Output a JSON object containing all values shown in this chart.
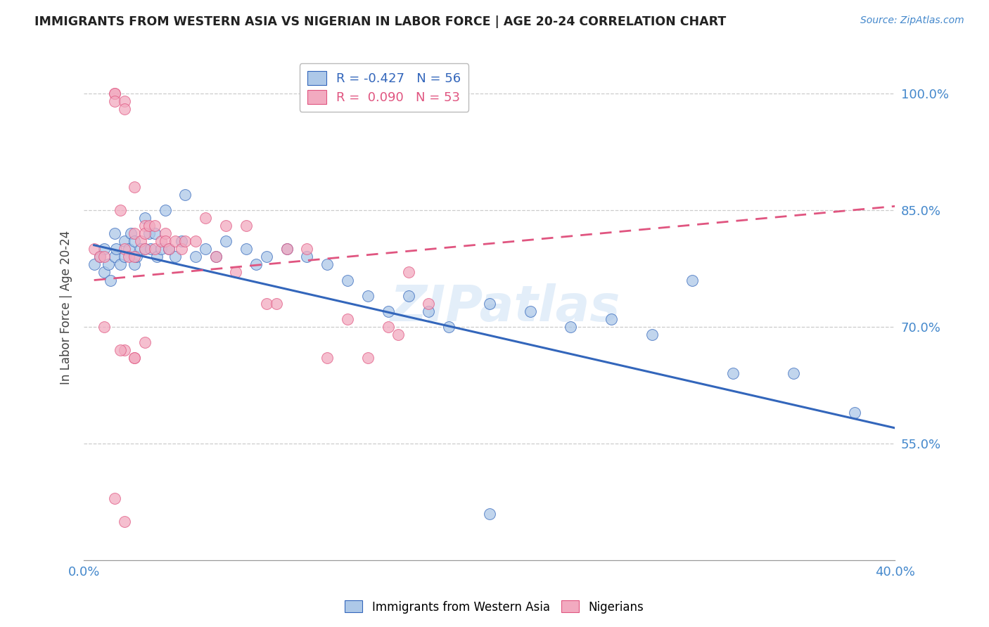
{
  "title": "IMMIGRANTS FROM WESTERN ASIA VS NIGERIAN IN LABOR FORCE | AGE 20-24 CORRELATION CHART",
  "source": "Source: ZipAtlas.com",
  "ylabel": "In Labor Force | Age 20-24",
  "xlim": [
    0.0,
    0.4
  ],
  "ylim": [
    0.4,
    1.05
  ],
  "yticks": [
    0.55,
    0.7,
    0.85,
    1.0
  ],
  "ytick_labels": [
    "55.0%",
    "70.0%",
    "85.0%",
    "100.0%"
  ],
  "xticks": [
    0.0,
    0.05,
    0.1,
    0.15,
    0.2,
    0.25,
    0.3,
    0.35,
    0.4
  ],
  "xtick_labels": [
    "0.0%",
    "",
    "",
    "",
    "",
    "",
    "",
    "",
    "40.0%"
  ],
  "legend_r_blue": "-0.427",
  "legend_n_blue": "56",
  "legend_r_pink": "0.090",
  "legend_n_pink": "53",
  "blue_color": "#adc8e8",
  "pink_color": "#f2aac0",
  "trend_blue_color": "#3366bb",
  "trend_pink_color": "#e05580",
  "watermark": "ZIPatlas",
  "blue_scatter_x": [
    0.005,
    0.008,
    0.01,
    0.01,
    0.012,
    0.013,
    0.015,
    0.015,
    0.016,
    0.018,
    0.02,
    0.02,
    0.022,
    0.023,
    0.025,
    0.025,
    0.026,
    0.028,
    0.03,
    0.03,
    0.032,
    0.033,
    0.035,
    0.036,
    0.038,
    0.04,
    0.042,
    0.045,
    0.048,
    0.05,
    0.055,
    0.06,
    0.065,
    0.07,
    0.08,
    0.085,
    0.09,
    0.1,
    0.11,
    0.12,
    0.13,
    0.14,
    0.15,
    0.16,
    0.17,
    0.18,
    0.2,
    0.22,
    0.24,
    0.26,
    0.28,
    0.3,
    0.32,
    0.35,
    0.38,
    0.2
  ],
  "blue_scatter_y": [
    0.78,
    0.79,
    0.8,
    0.77,
    0.78,
    0.76,
    0.82,
    0.79,
    0.8,
    0.78,
    0.81,
    0.79,
    0.8,
    0.82,
    0.81,
    0.78,
    0.79,
    0.8,
    0.84,
    0.8,
    0.82,
    0.8,
    0.82,
    0.79,
    0.8,
    0.85,
    0.8,
    0.79,
    0.81,
    0.87,
    0.79,
    0.8,
    0.79,
    0.81,
    0.8,
    0.78,
    0.79,
    0.8,
    0.79,
    0.78,
    0.76,
    0.74,
    0.72,
    0.74,
    0.72,
    0.7,
    0.73,
    0.72,
    0.7,
    0.71,
    0.69,
    0.76,
    0.64,
    0.64,
    0.59,
    0.46
  ],
  "pink_scatter_x": [
    0.005,
    0.008,
    0.01,
    0.01,
    0.015,
    0.015,
    0.015,
    0.018,
    0.02,
    0.02,
    0.02,
    0.022,
    0.025,
    0.025,
    0.025,
    0.028,
    0.03,
    0.03,
    0.03,
    0.032,
    0.035,
    0.035,
    0.038,
    0.04,
    0.04,
    0.042,
    0.045,
    0.048,
    0.05,
    0.055,
    0.06,
    0.065,
    0.07,
    0.075,
    0.08,
    0.09,
    0.095,
    0.1,
    0.11,
    0.12,
    0.13,
    0.14,
    0.15,
    0.155,
    0.16,
    0.17,
    0.02,
    0.025,
    0.03,
    0.015,
    0.02,
    0.025,
    0.018
  ],
  "pink_scatter_y": [
    0.8,
    0.79,
    0.79,
    0.7,
    1.0,
    1.0,
    0.99,
    0.85,
    0.99,
    0.98,
    0.8,
    0.79,
    0.88,
    0.82,
    0.79,
    0.81,
    0.83,
    0.82,
    0.8,
    0.83,
    0.83,
    0.8,
    0.81,
    0.82,
    0.81,
    0.8,
    0.81,
    0.8,
    0.81,
    0.81,
    0.84,
    0.79,
    0.83,
    0.77,
    0.83,
    0.73,
    0.73,
    0.8,
    0.8,
    0.66,
    0.71,
    0.66,
    0.7,
    0.69,
    0.77,
    0.73,
    0.67,
    0.66,
    0.68,
    0.48,
    0.45,
    0.66,
    0.67
  ],
  "blue_trend_x0": 0.005,
  "blue_trend_x1": 0.4,
  "blue_trend_y0": 0.805,
  "blue_trend_y1": 0.57,
  "pink_trend_x0": 0.005,
  "pink_trend_x1": 0.4,
  "pink_trend_y0": 0.76,
  "pink_trend_y1": 0.855
}
